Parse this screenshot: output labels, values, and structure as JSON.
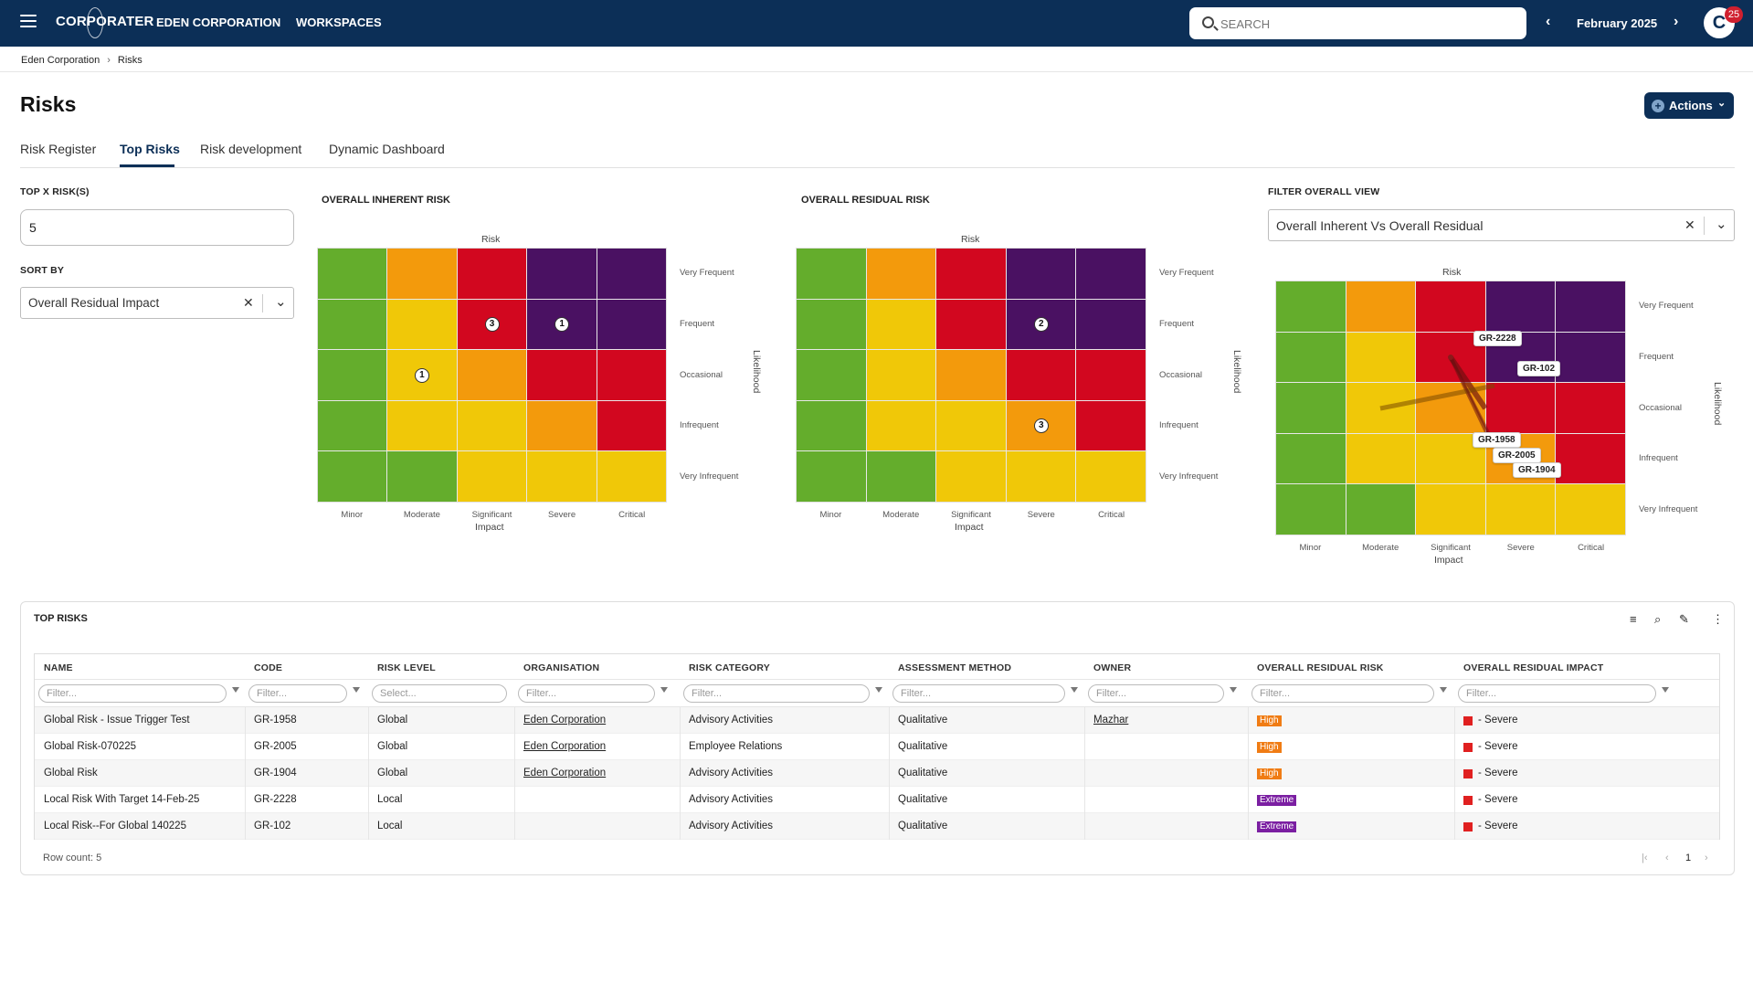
{
  "topbar": {
    "brand": "CORPORATER",
    "nav": [
      "EDEN CORPORATION",
      "WORKSPACES"
    ],
    "search_placeholder": "SEARCH",
    "month": "February 2025",
    "avatar_letter": "C",
    "notification_count": "25",
    "bg_color": "#0c2f57"
  },
  "breadcrumb": [
    "Eden Corporation",
    "Risks"
  ],
  "page": {
    "title": "Risks",
    "actions_label": "Actions",
    "tabs": [
      "Risk Register",
      "Top Risks",
      "Risk development",
      "Dynamic Dashboard"
    ],
    "active_tab": "Top Risks"
  },
  "controls": {
    "top_x_label": "TOP X RISK(S)",
    "top_x_value": "5",
    "sort_by_label": "SORT BY",
    "sort_by_value": "Overall Residual Impact",
    "filter_view_label": "FILTER OVERALL VIEW",
    "filter_view_value": "Overall Inherent Vs Overall Residual"
  },
  "heatmap_axes": {
    "top_label": "Risk",
    "x_title": "Impact",
    "y_title": "Likelihood",
    "impact_levels": [
      "Minor",
      "Moderate",
      "Significant",
      "Severe",
      "Critical"
    ],
    "likelihood_levels": [
      "Very Frequent",
      "Frequent",
      "Occasional",
      "Infrequent",
      "Very Infrequent"
    ]
  },
  "heatmap_colors": {
    "green": "#64ad2c",
    "yellow": "#f0c808",
    "orange": "#f39a0c",
    "red": "#d2071f",
    "purple": "#4a1162"
  },
  "heatmaps": [
    {
      "title": "OVERALL INHERENT RISK",
      "cells": [
        [
          "green",
          "orange",
          "red",
          "purple",
          "purple"
        ],
        [
          "green",
          "yellow",
          "red",
          "purple",
          "purple"
        ],
        [
          "green",
          "yellow",
          "orange",
          "red",
          "red"
        ],
        [
          "green",
          "yellow",
          "yellow",
          "orange",
          "red"
        ],
        [
          "green",
          "green",
          "yellow",
          "yellow",
          "yellow"
        ]
      ],
      "counts": [
        {
          "row": 1,
          "col": 2,
          "count": "3"
        },
        {
          "row": 1,
          "col": 3,
          "count": "1"
        },
        {
          "row": 2,
          "col": 1,
          "count": "1"
        }
      ]
    },
    {
      "title": "OVERALL RESIDUAL RISK",
      "cells": [
        [
          "green",
          "orange",
          "red",
          "purple",
          "purple"
        ],
        [
          "green",
          "yellow",
          "red",
          "purple",
          "purple"
        ],
        [
          "green",
          "yellow",
          "orange",
          "red",
          "red"
        ],
        [
          "green",
          "yellow",
          "yellow",
          "orange",
          "red"
        ],
        [
          "green",
          "green",
          "yellow",
          "yellow",
          "yellow"
        ]
      ],
      "counts": [
        {
          "row": 1,
          "col": 3,
          "count": "2"
        },
        {
          "row": 3,
          "col": 3,
          "count": "3"
        }
      ]
    }
  ],
  "comparison_heatmap": {
    "cells": [
      [
        "green",
        "orange",
        "red",
        "purple",
        "purple"
      ],
      [
        "green",
        "yellow",
        "red",
        "purple",
        "purple"
      ],
      [
        "green",
        "yellow",
        "orange",
        "red",
        "red"
      ],
      [
        "green",
        "yellow",
        "yellow",
        "orange",
        "red"
      ],
      [
        "green",
        "green",
        "yellow",
        "yellow",
        "yellow"
      ]
    ],
    "tags": [
      "GR-2228",
      "GR-102",
      "GR-1958",
      "GR-2005",
      "GR-1904"
    ]
  },
  "top_risks": {
    "title": "TOP RISKS",
    "columns": [
      "NAME",
      "CODE",
      "RISK LEVEL",
      "ORGANISATION",
      "RISK CATEGORY",
      "ASSESSMENT METHOD",
      "OWNER",
      "OVERALL RESIDUAL RISK",
      "OVERALL RESIDUAL IMPACT"
    ],
    "filter_placeholders": [
      "Filter...",
      "Filter...",
      "Select...",
      "Filter...",
      "Filter...",
      "Filter...",
      "Filter...",
      "Filter...",
      "Filter..."
    ],
    "rows": [
      {
        "name": "Global Risk - Issue Trigger Test",
        "code": "GR-1958",
        "level": "Global",
        "org": "Eden Corporation",
        "category": "Advisory Activities",
        "method": "Qualitative",
        "owner": "Mazhar",
        "risk": "High",
        "impact": "- Severe"
      },
      {
        "name": "Global Risk-070225",
        "code": "GR-2005",
        "level": "Global",
        "org": "Eden Corporation",
        "category": "Employee Relations",
        "method": "Qualitative",
        "owner": "",
        "risk": "High",
        "impact": "- Severe"
      },
      {
        "name": "Global Risk",
        "code": "GR-1904",
        "level": "Global",
        "org": "Eden Corporation",
        "category": "Advisory Activities",
        "method": "Qualitative",
        "owner": "",
        "risk": "High",
        "impact": "- Severe"
      },
      {
        "name": "Local Risk With Target 14-Feb-25",
        "code": "GR-2228",
        "level": "Local",
        "org": "",
        "category": "Advisory Activities",
        "method": "Qualitative",
        "owner": "",
        "risk": "Extreme",
        "impact": "- Severe"
      },
      {
        "name": "Local Risk--For Global 140225",
        "code": "GR-102",
        "level": "Local",
        "org": "",
        "category": "Advisory Activities",
        "method": "Qualitative",
        "owner": "",
        "risk": "Extreme",
        "impact": "- Severe"
      }
    ],
    "level_colors": {
      "High": "#f07c14",
      "Extreme": "#7b1fa2"
    },
    "row_count": "Row count: 5",
    "page_number": "1"
  }
}
